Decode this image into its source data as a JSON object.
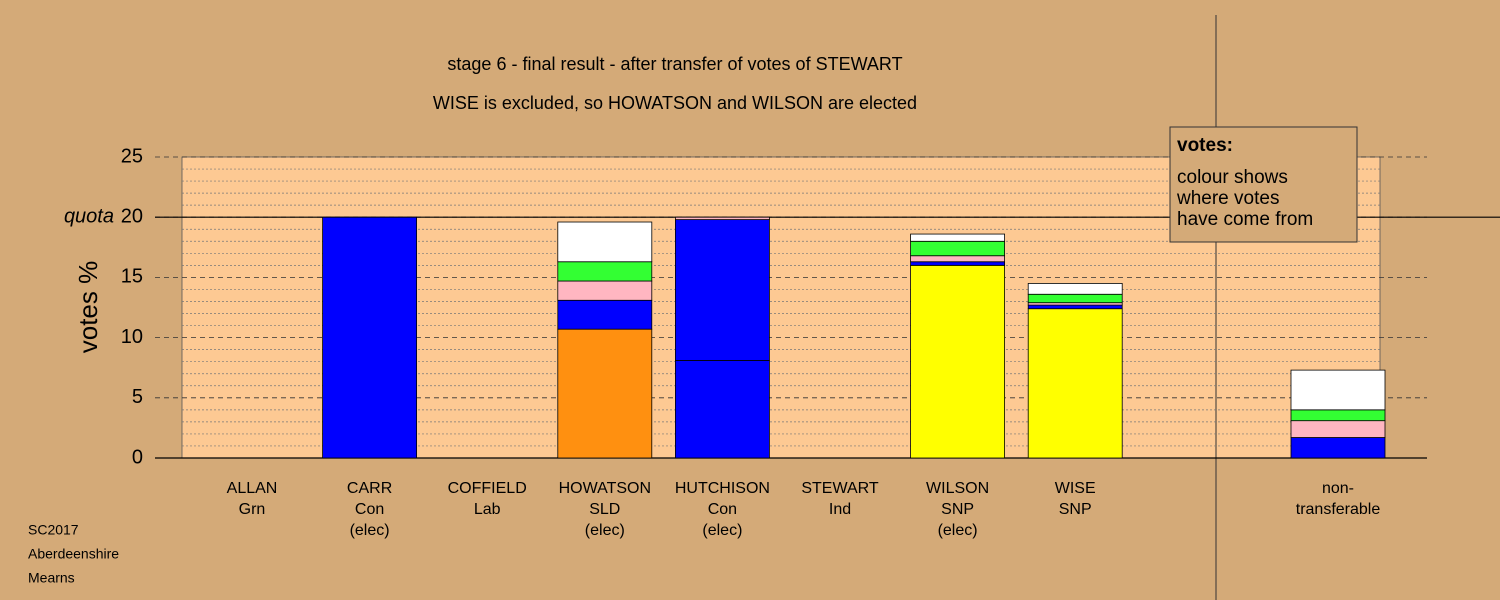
{
  "chart_data": {
    "type": "stacked-bar",
    "title": "stage 6 - final result - after transfer of votes of STEWART",
    "subtitle": "WISE is excluded, so HOWATSON and WILSON are elected",
    "y_label": "votes %",
    "ylim": [
      0,
      25
    ],
    "yticks": [
      0,
      5,
      10,
      15,
      20,
      25
    ],
    "minor_yticks": [
      1,
      2,
      3,
      4,
      6,
      7,
      8,
      9,
      11,
      12,
      13,
      14,
      16,
      17,
      18,
      19,
      21,
      22,
      23,
      24
    ],
    "quota": {
      "label": "quota",
      "value": 20
    },
    "categories": [
      [
        "ALLAN",
        "Grn"
      ],
      [
        "CARR",
        "Con",
        "(elec)"
      ],
      [
        "COFFIELD",
        "Lab"
      ],
      [
        "HOWATSON",
        "SLD",
        "(elec)"
      ],
      [
        "HUTCHISON",
        "Con",
        "(elec)"
      ],
      [
        "STEWART",
        "Ind"
      ],
      [
        "WILSON",
        "SNP",
        "(elec)"
      ],
      [
        "WISE",
        "SNP"
      ],
      [
        "non-",
        "transferable"
      ]
    ],
    "stacks": [
      [],
      [
        {
          "value": 20.0,
          "color": "#0000ff"
        }
      ],
      [],
      [
        {
          "value": 10.7,
          "color": "#ff9010"
        },
        {
          "value": 2.4,
          "color": "#0000ff"
        },
        {
          "value": 1.6,
          "color": "#ffb6c1"
        },
        {
          "value": 1.6,
          "color": "#33ff33"
        },
        {
          "value": 3.3,
          "color": "#ffffff"
        }
      ],
      [
        {
          "value": 8.1,
          "color": "#0000ff"
        },
        {
          "value": 11.7,
          "color": "#0000ff"
        },
        {
          "value": 0.2,
          "color": "#ffb6c1"
        }
      ],
      [],
      [
        {
          "value": 16.0,
          "color": "#ffff00"
        },
        {
          "value": 0.3,
          "color": "#0000ff"
        },
        {
          "value": 0.5,
          "color": "#ffb6c1"
        },
        {
          "value": 1.2,
          "color": "#33ff33"
        },
        {
          "value": 0.6,
          "color": "#ffffff"
        }
      ],
      [
        {
          "value": 12.4,
          "color": "#ffff00"
        },
        {
          "value": 0.3,
          "color": "#0000ff"
        },
        {
          "value": 0.2,
          "color": "#ffb6c1"
        },
        {
          "value": 0.7,
          "color": "#33ff33"
        },
        {
          "value": 0.9,
          "color": "#ffffff"
        }
      ],
      [
        {
          "value": 1.7,
          "color": "#0000ff"
        },
        {
          "value": 1.4,
          "color": "#ffb6c1"
        },
        {
          "value": 0.9,
          "color": "#33ff33"
        },
        {
          "value": 3.3,
          "color": "#ffffff"
        }
      ]
    ],
    "legend_box": {
      "heading": "votes:",
      "lines": [
        "colour shows",
        "where votes",
        "have come from"
      ]
    },
    "footer": [
      "SC2017",
      "Aberdeenshire",
      "Mearns"
    ]
  }
}
